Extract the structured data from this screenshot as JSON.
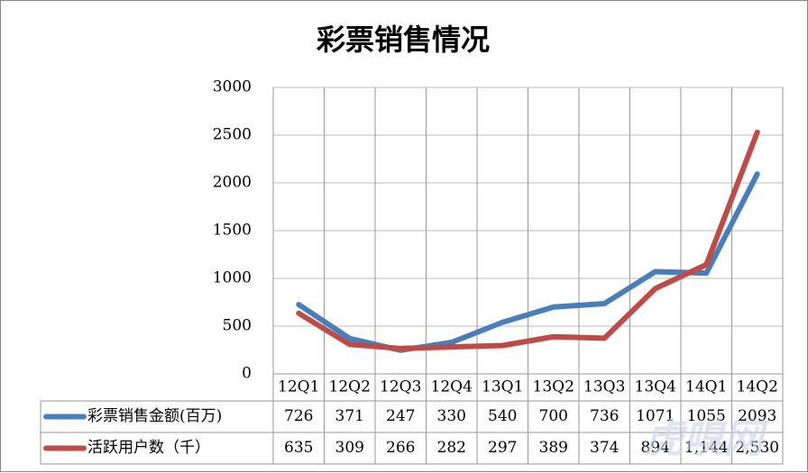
{
  "chart_data": {
    "type": "line",
    "title": "彩票销售情况",
    "categories": [
      "12Q1",
      "12Q2",
      "12Q3",
      "12Q4",
      "13Q1",
      "13Q2",
      "13Q3",
      "13Q4",
      "14Q1",
      "14Q2"
    ],
    "series": [
      {
        "name": "彩票销售金额(百万)",
        "color": "#4a7ebb",
        "values": [
          726,
          371,
          247,
          330,
          540,
          700,
          736,
          1071,
          1055,
          2093
        ]
      },
      {
        "name": "活跃用户数（千）",
        "color": "#be4b48",
        "values": [
          635,
          309,
          266,
          282,
          297,
          389,
          374,
          894,
          1144,
          2530
        ],
        "value_labels": [
          "635",
          "309",
          "266",
          "282",
          "297",
          "389",
          "374",
          "894",
          "1,144",
          "2,530"
        ]
      }
    ],
    "ylim": [
      0,
      3000
    ],
    "yticks": [
      0,
      500,
      1000,
      1500,
      2000,
      2500,
      3000
    ],
    "grid": true,
    "watermark": "虎嗅网"
  }
}
